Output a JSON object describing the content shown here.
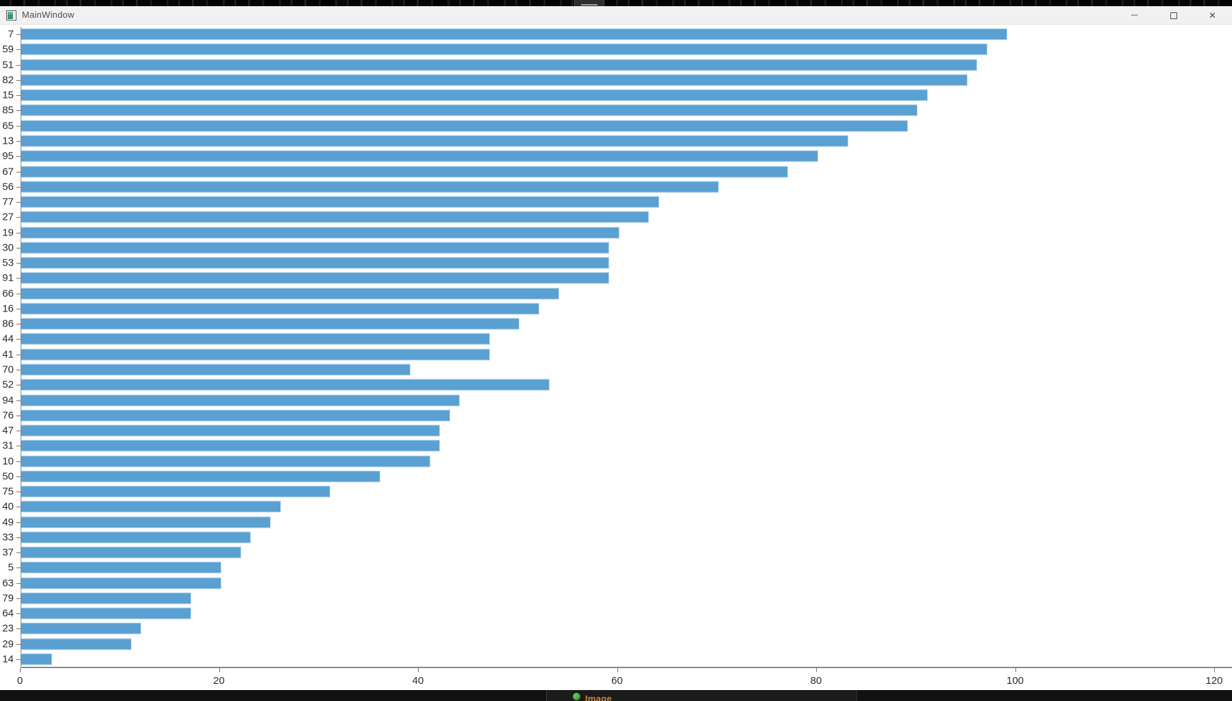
{
  "window": {
    "title_bar": {
      "title": "MainWindow"
    },
    "controls": {
      "minimize_glyph": "─",
      "close_glyph": "✕"
    }
  },
  "taskbar": {
    "item_label": "Image"
  },
  "colors": {
    "bar_fill": "#5aa0d2",
    "axis_line": "#8a8a8a",
    "tick_label": "#2b2b2b",
    "titlebar_bg": "#f1f1f1"
  },
  "chart_data": {
    "type": "bar",
    "orientation": "horizontal",
    "title": "",
    "xlabel": "",
    "ylabel": "",
    "grid": false,
    "xlim": [
      0,
      120
    ],
    "xticks": [
      0,
      20,
      40,
      60,
      80,
      100,
      120
    ],
    "xtick_labels": [
      "0",
      "20",
      "40",
      "60",
      "80",
      "100",
      "120"
    ],
    "categories": [
      7,
      59,
      51,
      82,
      15,
      85,
      65,
      13,
      95,
      67,
      56,
      77,
      27,
      19,
      30,
      53,
      91,
      66,
      16,
      86,
      44,
      41,
      70,
      52,
      94,
      76,
      47,
      31,
      10,
      50,
      75,
      40,
      49,
      33,
      37,
      5,
      63,
      79,
      64,
      23,
      29,
      14
    ],
    "values": [
      99,
      97,
      96,
      95,
      91,
      90,
      89,
      83,
      80,
      77,
      70,
      64,
      63,
      60,
      59,
      59,
      59,
      54,
      52,
      50,
      47,
      47,
      39,
      53,
      44,
      43,
      42,
      42,
      41,
      36,
      31,
      26,
      25,
      23,
      22,
      20,
      20,
      17,
      17,
      12,
      11,
      3
    ]
  }
}
